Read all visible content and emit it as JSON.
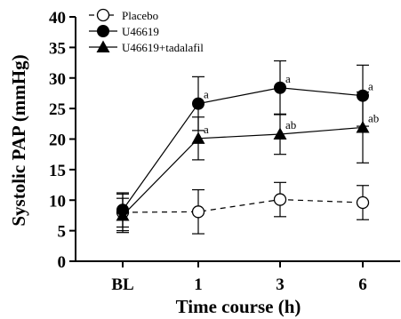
{
  "chart_data": {
    "type": "line",
    "xlabel": "Time course (h)",
    "ylabel": "Systolic PAP (mmHg)",
    "ylim": [
      0,
      40
    ],
    "yticks": [
      0,
      5,
      10,
      15,
      20,
      25,
      30,
      35,
      40
    ],
    "categories": [
      "BL",
      "1",
      "3",
      "6"
    ],
    "legend_position": "top-left",
    "series": [
      {
        "name": "Placebo",
        "marker": "open-circle",
        "line": "dashed",
        "values": [
          8.0,
          8.1,
          10.1,
          9.6
        ],
        "errors": [
          3.0,
          3.6,
          2.8,
          2.8
        ],
        "annotations": [
          "",
          "",
          "",
          ""
        ]
      },
      {
        "name": "U46619",
        "marker": "filled-circle",
        "line": "solid",
        "values": [
          8.4,
          25.8,
          28.4,
          27.1
        ],
        "errors": [
          2.8,
          4.4,
          4.4,
          5.0
        ],
        "annotations": [
          "",
          "a",
          "a",
          "a"
        ]
      },
      {
        "name": "U46619+tadalafil",
        "marker": "filled-triangle",
        "line": "solid",
        "values": [
          7.5,
          20.1,
          20.8,
          21.9
        ],
        "errors": [
          2.8,
          3.5,
          3.3,
          5.8
        ],
        "annotations": [
          "",
          "a",
          "ab",
          "ab"
        ]
      }
    ]
  }
}
